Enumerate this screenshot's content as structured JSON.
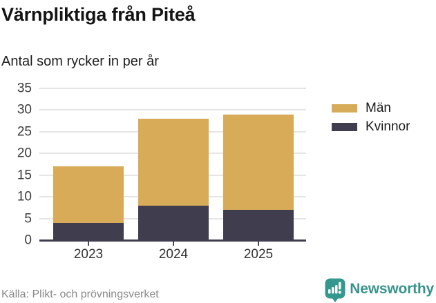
{
  "header": {
    "title": "Värnpliktiga från Piteå",
    "subtitle": "Antal som rycker in per år"
  },
  "chart_data": {
    "type": "bar",
    "stacked": true,
    "title": "Värnpliktiga från Piteå",
    "subtitle": "Antal som rycker in per år",
    "categories": [
      "2023",
      "2024",
      "2025"
    ],
    "series": [
      {
        "name": "Män",
        "color": "#d7ab57",
        "values": [
          13,
          20,
          22
        ]
      },
      {
        "name": "Kvinnor",
        "color": "#3f3d4e",
        "values": [
          4,
          8,
          7
        ]
      }
    ],
    "stack_bottom_to_top": [
      "Kvinnor",
      "Män"
    ],
    "totals": [
      17,
      28,
      29
    ],
    "ylim": [
      0,
      35
    ],
    "yticks": [
      0,
      5,
      10,
      15,
      20,
      25,
      30,
      35
    ],
    "grid": true,
    "legend_position": "right"
  },
  "legend": {
    "items": [
      {
        "label": "Män",
        "color": "#d7ab57"
      },
      {
        "label": "Kvinnor",
        "color": "#3f3d4e"
      }
    ]
  },
  "footer": {
    "source": "Källa: Plikt- och prövningsverket",
    "logo_text": "Newsworthy"
  },
  "colors": {
    "men": "#d7ab57",
    "women": "#3f3d4e",
    "brand_teal": "#35988f",
    "gridline": "#e5e5e7",
    "axis": "#3f3d4e"
  }
}
